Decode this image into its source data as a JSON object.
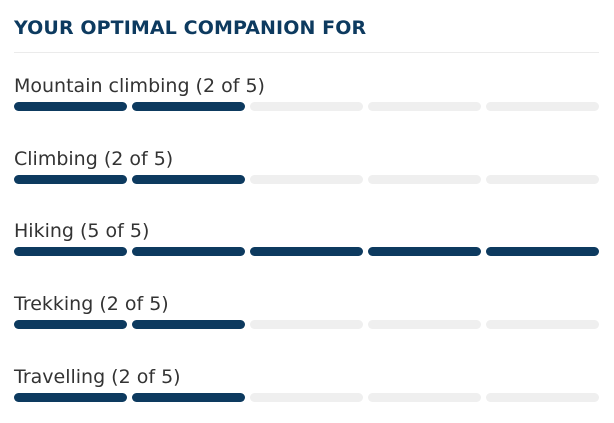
{
  "heading": "YOUR OPTIMAL COMPANION FOR",
  "colors": {
    "accent": "#0d3a5f",
    "track": "#efefef"
  },
  "scale_max": 5,
  "activities": [
    {
      "label": "Mountain climbing (2 of 5)",
      "rating": 2
    },
    {
      "label": "Climbing (2 of 5)",
      "rating": 2
    },
    {
      "label": "Hiking (5 of 5)",
      "rating": 5
    },
    {
      "label": "Trekking (2 of 5)",
      "rating": 2
    },
    {
      "label": "Travelling (2 of 5)",
      "rating": 2
    }
  ]
}
